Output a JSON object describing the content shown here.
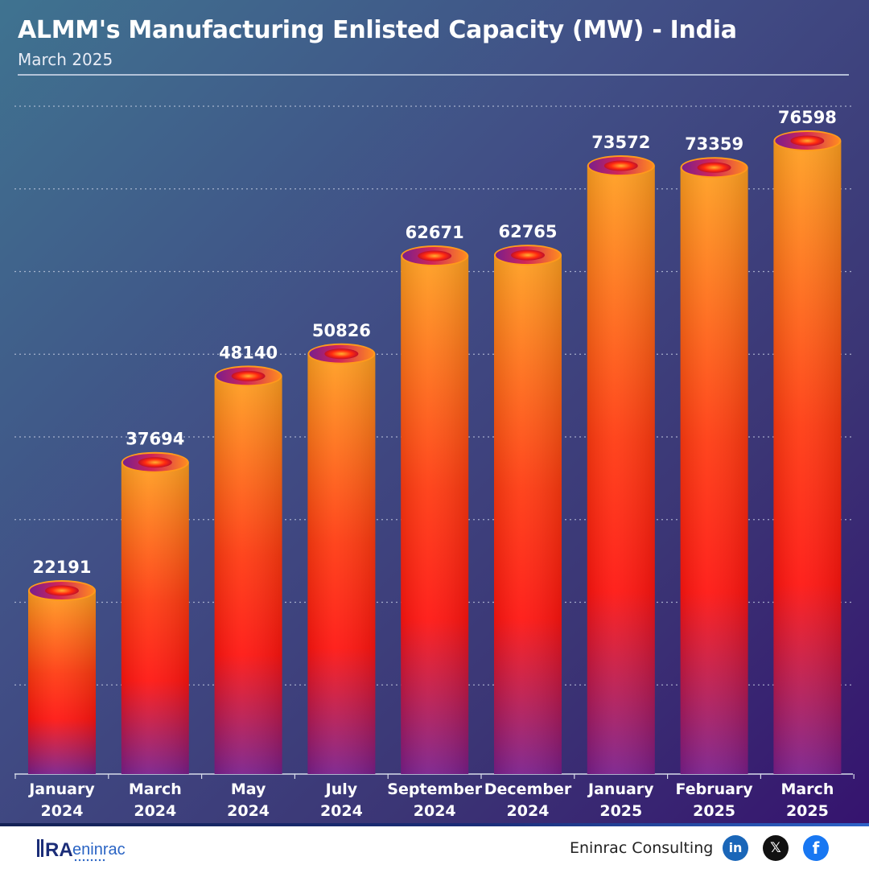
{
  "header": {
    "title": "ALMM's Manufacturing Enlisted Capacity (MW) - India",
    "subtitle": "March 2025"
  },
  "chart_data": {
    "type": "bar",
    "title": "ALMM's Manufacturing Enlisted Capacity (MW) - India",
    "subtitle": "March 2025",
    "xlabel": "",
    "ylabel": "",
    "categories": [
      [
        "January",
        "2024"
      ],
      [
        "March",
        "2024"
      ],
      [
        "May",
        "2024"
      ],
      [
        "July",
        "2024"
      ],
      [
        "September",
        "2024"
      ],
      [
        "December",
        "2024"
      ],
      [
        "January",
        "2025"
      ],
      [
        "February",
        "2025"
      ],
      [
        "March",
        "2025"
      ]
    ],
    "values": [
      22191,
      37694,
      48140,
      50826,
      62671,
      62765,
      73572,
      73359,
      76598
    ],
    "ylim": [
      0,
      80000
    ],
    "grid": true,
    "data_labels": true,
    "colors": {
      "bar_top": "#ffa020",
      "bar_mid": "#ff1510",
      "bar_bottom": "#7a1f8c",
      "label": "#ffffff",
      "grid": "#c8d0e4"
    }
  },
  "footer": {
    "company": "Eninrac Consulting",
    "logo_text": "eninrac",
    "social": [
      {
        "name": "linkedin-icon",
        "glyph": "in",
        "color": "#1a66b8"
      },
      {
        "name": "x-icon",
        "glyph": "𝕏",
        "color": "#111111"
      },
      {
        "name": "facebook-icon",
        "glyph": "f",
        "color": "#1877f2"
      }
    ]
  }
}
